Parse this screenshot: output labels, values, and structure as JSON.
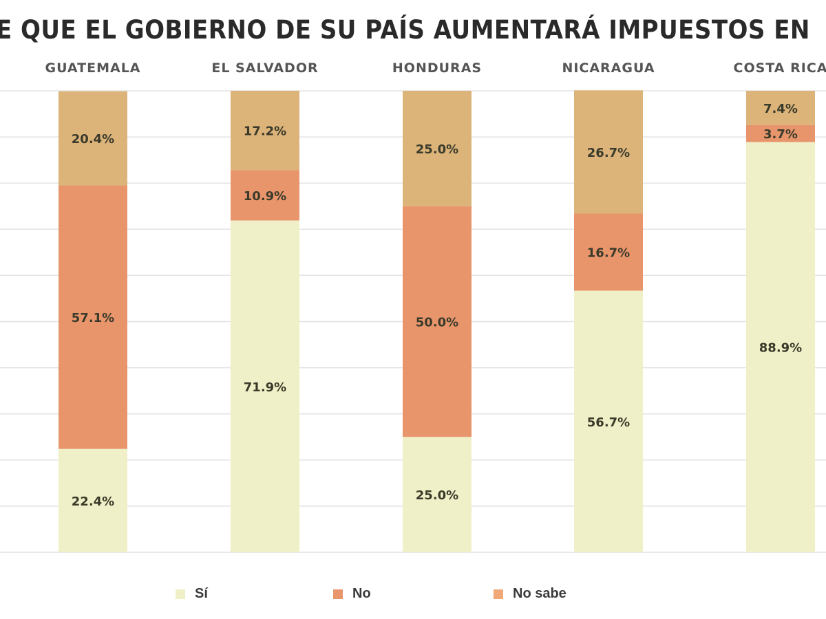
{
  "chart_data": {
    "type": "bar",
    "stacked": true,
    "title": "E QUE EL GOBIERNO DE SU PAÍS AUMENTARÁ IMPUESTOS EN",
    "categories": [
      "GUATEMALA",
      "EL SALVADOR",
      "HONDURAS",
      "NICARAGUA",
      "COSTA RICA"
    ],
    "series": [
      {
        "name": "Sí",
        "color": "#f0f0c8",
        "values": [
          22.4,
          71.9,
          25.0,
          56.7,
          88.9
        ],
        "labels": [
          "22.4%",
          "71.9%",
          "25.0%",
          "56.7%",
          "88.9%"
        ]
      },
      {
        "name": "No",
        "color": "#e8956c",
        "values": [
          57.1,
          10.9,
          50.0,
          16.7,
          3.7
        ],
        "labels": [
          "57.1%",
          "10.9%",
          "50.0%",
          "16.7%",
          "3.7%"
        ]
      },
      {
        "name": "No sabe",
        "color": "#dcb47a",
        "values": [
          20.4,
          17.2,
          25.0,
          26.7,
          7.4
        ],
        "labels": [
          "20.4%",
          "17.2%",
          "25.0%",
          "26.7%",
          "7.4%"
        ]
      }
    ],
    "ylim": [
      0,
      100
    ],
    "grid": true,
    "legend_position": "bottom"
  },
  "legend": {
    "items": [
      {
        "label": "Sí",
        "color": "#f0f0c8"
      },
      {
        "label": "No",
        "color": "#e8956c"
      },
      {
        "label": "No sabe",
        "color": "#f0a878"
      }
    ]
  }
}
